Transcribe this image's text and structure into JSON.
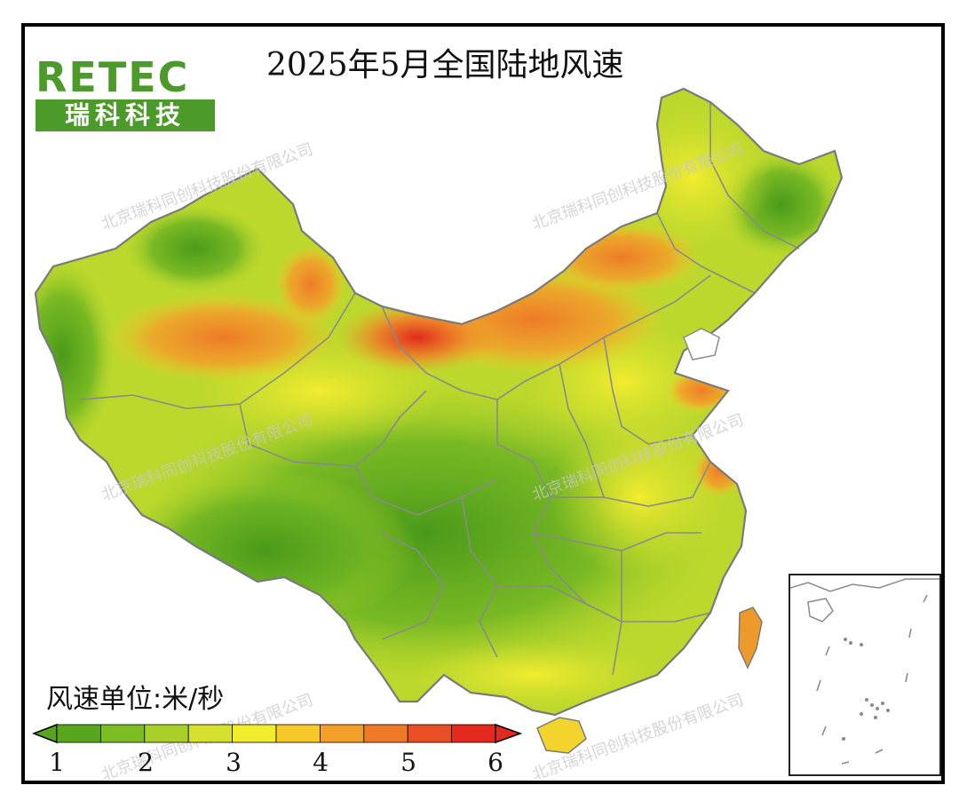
{
  "title": "2025年5月全国陆地风速",
  "logo": {
    "word": "RETEC",
    "subtitle": "瑞科科技"
  },
  "watermark_text": "北京瑞科同创科技股份有限公司",
  "unit_label": "风速单位:米/秒",
  "legend": {
    "ticks": [
      "1",
      "2",
      "3",
      "4",
      "5",
      "6"
    ],
    "colors": [
      "#5aa51e",
      "#7cbd24",
      "#a9d02a",
      "#d5e02e",
      "#f2ec2e",
      "#f7c829",
      "#f3a02a",
      "#ee7a28",
      "#e94f24",
      "#e22a1e"
    ]
  },
  "map": {
    "type": "wind-speed choropleth",
    "region": "China",
    "value_range": [
      1,
      6
    ],
    "high_wind_areas": [
      "Inner Mongolia",
      "northern Xinjiang",
      "Shandong coast"
    ],
    "low_wind_areas": [
      "Sichuan Basin",
      "southern Tibet",
      "Yunnan"
    ]
  }
}
